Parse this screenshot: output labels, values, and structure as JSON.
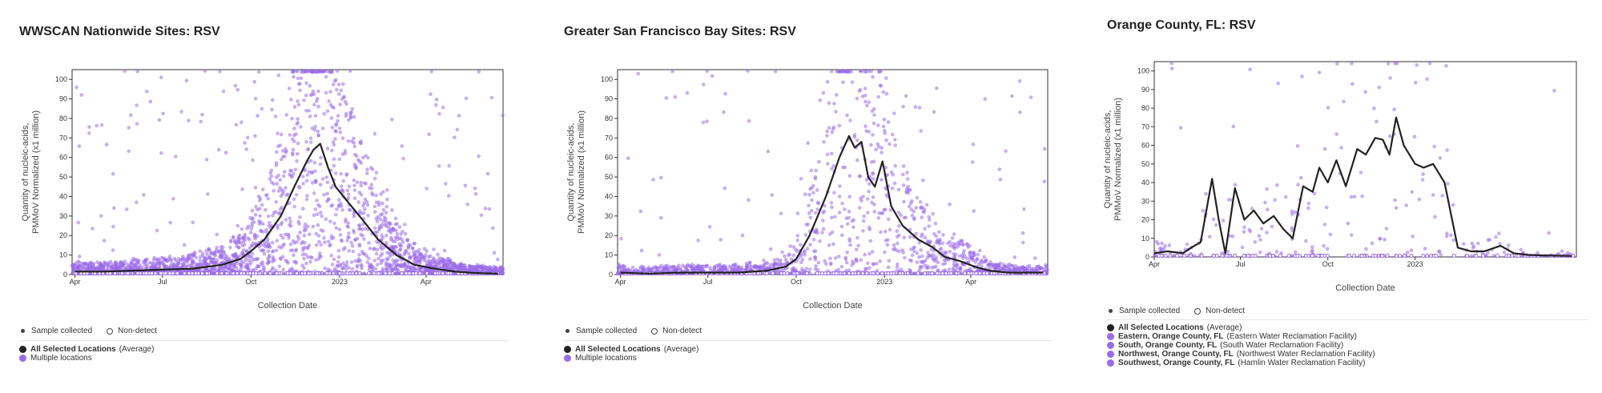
{
  "colors": {
    "accent": "#9b6be8",
    "average_line": "#222222"
  },
  "panels": [
    {
      "title": "WWSCAN Nationwide Sites: RSV",
      "legend": {
        "sample_collected": "Sample collected",
        "non_detect": "Non-detect",
        "entries": [
          {
            "bold": "All Selected Locations",
            "rest": "(Average)",
            "color": "#222222"
          },
          {
            "bold": "",
            "rest": "Multiple locations",
            "color": "#9b6be8"
          }
        ]
      }
    },
    {
      "title": "Greater San Francisco Bay Sites: RSV",
      "legend": {
        "sample_collected": "Sample collected",
        "non_detect": "Non-detect",
        "entries": [
          {
            "bold": "All Selected Locations",
            "rest": "(Average)",
            "color": "#222222"
          },
          {
            "bold": "",
            "rest": "Multiple locations",
            "color": "#9b6be8"
          }
        ]
      }
    },
    {
      "title": "Orange County, FL: RSV",
      "legend": {
        "sample_collected": "Sample collected",
        "non_detect": "Non-detect",
        "entries": [
          {
            "bold": "All Selected Locations",
            "rest": "(Average)",
            "color": "#222222"
          },
          {
            "bold": "Eastern, Orange County, FL",
            "rest": "(Eastern Water Reclamation Facility)",
            "color": "#9b6be8"
          },
          {
            "bold": "South, Orange County, FL",
            "rest": "(South Water Reclamation Facility)",
            "color": "#9b6be8"
          },
          {
            "bold": "Northwest, Orange County, FL",
            "rest": "(Northwest Water Reclamation Facility)",
            "color": "#9b6be8"
          },
          {
            "bold": "Southwest, Orange County, FL",
            "rest": "(Hamlin Water Reclamation Facility)",
            "color": "#9b6be8"
          }
        ]
      }
    }
  ],
  "chart_data": [
    {
      "type": "line",
      "title": "WWSCAN Nationwide Sites: RSV",
      "xlabel": "Collection Date",
      "ylabel": "Quantity of nucleic-acids, PMMoV Normalized (x1 million)",
      "x_tick_labels": [
        "Apr",
        "Jul",
        "Oct",
        "2023",
        "Apr"
      ],
      "xlim": [
        "2022-03-29",
        "2023-06-20"
      ],
      "ylim": [
        0,
        105
      ],
      "y_ticks": [
        0,
        10,
        20,
        30,
        40,
        50,
        60,
        70,
        80,
        90,
        100
      ],
      "series": [
        {
          "name": "All Selected Locations (Average)",
          "x": [
            "2022-04-01",
            "2022-05-01",
            "2022-06-01",
            "2022-07-01",
            "2022-08-01",
            "2022-09-01",
            "2022-09-20",
            "2022-10-01",
            "2022-10-15",
            "2022-11-01",
            "2022-11-15",
            "2022-11-28",
            "2022-12-05",
            "2022-12-12",
            "2022-12-20",
            "2022-12-28",
            "2023-01-10",
            "2023-01-25",
            "2023-02-10",
            "2023-03-01",
            "2023-03-20",
            "2023-04-10",
            "2023-05-01",
            "2023-05-20",
            "2023-06-15"
          ],
          "values": [
            1.5,
            1.5,
            2,
            2.5,
            3,
            5,
            8,
            12,
            18,
            30,
            45,
            58,
            64,
            67,
            55,
            45,
            37,
            28,
            18,
            10,
            5,
            3,
            1.5,
            0.8,
            0.5
          ]
        }
      ]
    },
    {
      "type": "line",
      "title": "Greater San Francisco Bay Sites: RSV",
      "xlabel": "Collection Date",
      "ylabel": "Quantity of nucleic-acids, PMMoV Normalized (x1 million)",
      "x_tick_labels": [
        "Apr",
        "Jul",
        "Oct",
        "2023",
        "Apr"
      ],
      "xlim": [
        "2022-03-29",
        "2023-06-20"
      ],
      "ylim": [
        0,
        105
      ],
      "y_ticks": [
        0,
        10,
        20,
        30,
        40,
        50,
        60,
        70,
        80,
        90,
        100
      ],
      "series": [
        {
          "name": "All Selected Locations (Average)",
          "x": [
            "2022-04-01",
            "2022-05-01",
            "2022-06-01",
            "2022-07-01",
            "2022-08-01",
            "2022-09-01",
            "2022-09-20",
            "2022-10-01",
            "2022-10-15",
            "2022-11-01",
            "2022-11-15",
            "2022-11-25",
            "2022-12-01",
            "2022-12-08",
            "2022-12-15",
            "2022-12-22",
            "2022-12-30",
            "2023-01-08",
            "2023-01-20",
            "2023-02-05",
            "2023-02-20",
            "2023-03-05",
            "2023-03-20",
            "2023-04-05",
            "2023-04-20",
            "2023-05-10",
            "2023-06-15"
          ],
          "values": [
            1,
            0.5,
            1,
            1,
            1,
            2,
            4,
            8,
            20,
            40,
            60,
            71,
            65,
            68,
            50,
            45,
            58,
            35,
            25,
            18,
            14,
            9,
            7,
            4,
            2,
            1,
            1
          ]
        }
      ]
    },
    {
      "type": "line",
      "title": "Orange County, FL: RSV",
      "xlabel": "Collection Date",
      "ylabel": "Quantity of nucleic-acids, PMMoV Normalized (x1 million)",
      "x_tick_labels": [
        "Jul",
        "Oct",
        "2023",
        "Apr"
      ],
      "xlim": [
        "2022-04-01",
        "2023-06-20"
      ],
      "ylim": [
        0,
        105
      ],
      "y_ticks": [
        0,
        10,
        20,
        30,
        40,
        50,
        60,
        70,
        80,
        90,
        100
      ],
      "series": [
        {
          "name": "All Selected Locations (Average)",
          "x": [
            "2022-04-01",
            "2022-04-15",
            "2022-05-01",
            "2022-05-10",
            "2022-05-20",
            "2022-06-01",
            "2022-06-08",
            "2022-06-15",
            "2022-06-25",
            "2022-07-05",
            "2022-07-15",
            "2022-07-25",
            "2022-08-05",
            "2022-08-15",
            "2022-08-25",
            "2022-09-05",
            "2022-09-15",
            "2022-09-22",
            "2022-10-01",
            "2022-10-10",
            "2022-10-20",
            "2022-11-01",
            "2022-11-10",
            "2022-11-20",
            "2022-11-28",
            "2022-12-05",
            "2022-12-12",
            "2022-12-20",
            "2023-01-01",
            "2023-01-10",
            "2023-01-20",
            "2023-02-01",
            "2023-02-15",
            "2023-03-01",
            "2023-03-15",
            "2023-04-01",
            "2023-04-15",
            "2023-05-01",
            "2023-06-15"
          ],
          "values": [
            2,
            3,
            2,
            5,
            8,
            42,
            20,
            2,
            37,
            20,
            25,
            18,
            22,
            15,
            10,
            38,
            35,
            48,
            40,
            52,
            38,
            58,
            55,
            64,
            63,
            55,
            75,
            60,
            50,
            48,
            50,
            40,
            5,
            3,
            3,
            6,
            2,
            1,
            0.5
          ]
        }
      ]
    }
  ]
}
